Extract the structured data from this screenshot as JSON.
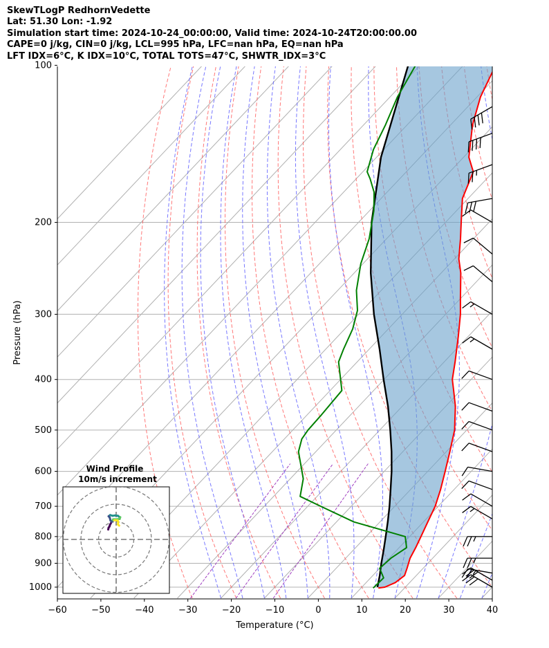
{
  "header": {
    "line1": "SkewTLogP RedhornVedette",
    "line2": "Lat: 51.30   Lon: -1.92",
    "line3": "Simulation start time: 2024-10-24_00:00:00, Valid time: 2024-10-24T20:00:00.00",
    "line4": "CAPE=0 j/kg, CIN=0 j/kg, LCL=995 hPa, LFC=nan hPa, EQ=nan hPa",
    "line5": "LFT IDX=6°C, K IDX=10°C, TOTAL TOTS=47°C, SHWTR_IDX=3°C"
  },
  "chart_data": {
    "type": "line",
    "subtype": "skew-t log-p",
    "xlabel": "Temperature (°C)",
    "ylabel": "Pressure (hPa)",
    "xlim": [
      -60,
      40
    ],
    "ylim": [
      1050,
      100
    ],
    "xticks": [
      "−60",
      "−50",
      "−40",
      "−30",
      "−20",
      "−10",
      "0",
      "10",
      "20",
      "30",
      "40"
    ],
    "yticks": [
      "100",
      "200",
      "300",
      "400",
      "500",
      "600",
      "700",
      "800",
      "900",
      "1000"
    ],
    "ytick_values": [
      100,
      200,
      300,
      400,
      500,
      600,
      700,
      800,
      900,
      1000
    ],
    "yscale": "log",
    "grid": true,
    "colors": {
      "temperature": "#ff0000",
      "dewpoint": "#008000",
      "parcel": "#000000",
      "shade": "#6aa2cc",
      "dry_adiabats": "#ff5f5f",
      "moist_adiabats": "#5f5fff",
      "mixing_ratio": "#a040c0",
      "isotherms": "#b0b0b0"
    },
    "series": [
      {
        "role": "temperature",
        "points": [
          [
            1004,
            14.0
          ],
          [
            1000,
            15.3
          ],
          [
            980,
            16.7
          ],
          [
            950,
            17.3
          ],
          [
            920,
            16.3
          ],
          [
            880,
            14.8
          ],
          [
            840,
            13.8
          ],
          [
            800,
            12.6
          ],
          [
            750,
            11.0
          ],
          [
            700,
            9.3
          ],
          [
            650,
            6.9
          ],
          [
            600,
            4.0
          ],
          [
            550,
            0.8
          ],
          [
            500,
            -2.8
          ],
          [
            450,
            -7.8
          ],
          [
            420,
            -11.6
          ],
          [
            400,
            -14.3
          ],
          [
            370,
            -17.5
          ],
          [
            330,
            -22.4
          ],
          [
            300,
            -26.6
          ],
          [
            280,
            -30.0
          ],
          [
            250,
            -35.5
          ],
          [
            235,
            -39.0
          ],
          [
            215,
            -43.0
          ],
          [
            200,
            -46.4
          ],
          [
            180,
            -51.3
          ],
          [
            160,
            -54.6
          ],
          [
            150,
            -58.8
          ],
          [
            130,
            -65.0
          ],
          [
            115,
            -69.2
          ],
          [
            100,
            -72.6
          ]
        ]
      },
      {
        "role": "dewpoint",
        "points": [
          [
            1004,
            12.8
          ],
          [
            960,
            13.0
          ],
          [
            920,
            10.0
          ],
          [
            880,
            10.4
          ],
          [
            840,
            11.7
          ],
          [
            800,
            9.0
          ],
          [
            750,
            -6.0
          ],
          [
            700,
            -17.0
          ],
          [
            670,
            -23.9
          ],
          [
            620,
            -27.0
          ],
          [
            550,
            -34.0
          ],
          [
            520,
            -36.0
          ],
          [
            500,
            -36.5
          ],
          [
            470,
            -36.7
          ],
          [
            420,
            -37.3
          ],
          [
            400,
            -40.0
          ],
          [
            370,
            -44.3
          ],
          [
            350,
            -45.9
          ],
          [
            320,
            -48.2
          ],
          [
            295,
            -51.1
          ],
          [
            270,
            -55.7
          ],
          [
            240,
            -60.5
          ],
          [
            215,
            -64.0
          ],
          [
            190,
            -69.0
          ],
          [
            175,
            -73.0
          ],
          [
            165,
            -76.8
          ],
          [
            160,
            -79.0
          ],
          [
            145,
            -82.4
          ],
          [
            130,
            -85.0
          ],
          [
            115,
            -88.3
          ],
          [
            100,
            -91.0
          ]
        ]
      },
      {
        "role": "parcel",
        "points": [
          [
            1000,
            13.6
          ],
          [
            950,
            11.6
          ],
          [
            900,
            9.3
          ],
          [
            850,
            7.0
          ],
          [
            800,
            4.5
          ],
          [
            750,
            1.8
          ],
          [
            700,
            -1.2
          ],
          [
            650,
            -4.6
          ],
          [
            600,
            -8.3
          ],
          [
            550,
            -12.6
          ],
          [
            500,
            -17.6
          ],
          [
            450,
            -23.3
          ],
          [
            400,
            -30.1
          ],
          [
            350,
            -37.6
          ],
          [
            300,
            -46.5
          ],
          [
            250,
            -56.2
          ],
          [
            200,
            -67.0
          ],
          [
            150,
            -79.0
          ],
          [
            100,
            -92.7
          ]
        ]
      }
    ],
    "wind_barbs": [
      {
        "p": 1000,
        "speed_kt": 30,
        "dir": 300
      },
      {
        "p": 970,
        "speed_kt": 30,
        "dir": 300
      },
      {
        "p": 940,
        "speed_kt": 25,
        "dir": 280
      },
      {
        "p": 880,
        "speed_kt": 25,
        "dir": 270
      },
      {
        "p": 800,
        "speed_kt": 25,
        "dir": 270
      },
      {
        "p": 740,
        "speed_kt": 15,
        "dir": 300
      },
      {
        "p": 700,
        "speed_kt": 10,
        "dir": 300
      },
      {
        "p": 650,
        "speed_kt": 10,
        "dir": 290
      },
      {
        "p": 600,
        "speed_kt": 10,
        "dir": 280
      },
      {
        "p": 550,
        "speed_kt": 10,
        "dir": 290
      },
      {
        "p": 500,
        "speed_kt": 10,
        "dir": 290
      },
      {
        "p": 460,
        "speed_kt": 10,
        "dir": 290
      },
      {
        "p": 400,
        "speed_kt": 10,
        "dir": 290
      },
      {
        "p": 350,
        "speed_kt": 15,
        "dir": 300
      },
      {
        "p": 300,
        "speed_kt": 15,
        "dir": 300
      },
      {
        "p": 260,
        "speed_kt": 10,
        "dir": 310
      },
      {
        "p": 230,
        "speed_kt": 10,
        "dir": 310
      },
      {
        "p": 200,
        "speed_kt": 10,
        "dir": 300
      },
      {
        "p": 180,
        "speed_kt": 30,
        "dir": 260
      },
      {
        "p": 155,
        "speed_kt": 25,
        "dir": 250
      },
      {
        "p": 135,
        "speed_kt": 40,
        "dir": 250
      },
      {
        "p": 120,
        "speed_kt": 40,
        "dir": 240
      }
    ],
    "hodograph": {
      "title": "Wind Profile",
      "subtitle": "10m/s increment",
      "rings": [
        10,
        20,
        30
      ],
      "points_uv": [
        [
          -4.5,
          -4.2
        ],
        [
          -4.3,
          -3.2
        ],
        [
          -3.8,
          -2.5
        ],
        [
          -3.5,
          -1.5
        ],
        [
          -2.3,
          0.6
        ],
        [
          -2.5,
          0.2
        ],
        [
          -3.2,
          0.9
        ],
        [
          -3.5,
          2.0
        ],
        [
          -3.7,
          2.7
        ],
        [
          -4.3,
          3.3
        ],
        [
          -3.4,
          4.0
        ],
        [
          -2.0,
          3.6
        ],
        [
          -0.6,
          3.8
        ],
        [
          1.0,
          3.6
        ],
        [
          1.6,
          3.1
        ],
        [
          2.3,
          2.8
        ],
        [
          2.0,
          1.8
        ],
        [
          0.6,
          1.6
        ],
        [
          -1.7,
          1.6
        ],
        [
          -1.9,
          1.2
        ],
        [
          -1.0,
          1.1
        ],
        [
          0.8,
          1.0
        ],
        [
          1.2,
          0.0
        ],
        [
          1.0,
          -1.3
        ],
        [
          1.7,
          -2.0
        ]
      ],
      "color_scale": [
        "#440154",
        "#3b528b",
        "#21918c",
        "#5ec962",
        "#fde725"
      ]
    }
  }
}
